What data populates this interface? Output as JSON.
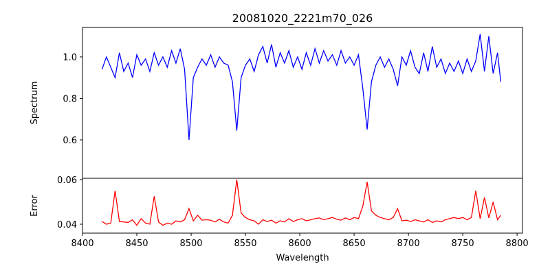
{
  "chart_data": [
    {
      "type": "line",
      "title": "20081020_2221m70_026",
      "xlabel": "",
      "ylabel": "Spectrum",
      "xlim": [
        8400,
        8805
      ],
      "ylim": [
        0.415,
        1.142
      ],
      "yticks": [
        "0.6",
        "0.8",
        "1.0"
      ],
      "ytick_values": [
        0.6,
        0.8,
        1.0
      ],
      "grid": false,
      "color": "#0000ff",
      "x_start": 8418,
      "x_step": 4,
      "values": [
        0.94,
        1.0,
        0.95,
        0.9,
        1.02,
        0.93,
        0.97,
        0.9,
        1.01,
        0.96,
        0.99,
        0.93,
        1.02,
        0.96,
        1.0,
        0.95,
        1.03,
        0.97,
        1.04,
        0.94,
        0.6,
        0.9,
        0.95,
        0.99,
        0.96,
        1.01,
        0.95,
        1.0,
        0.97,
        0.96,
        0.88,
        0.645,
        0.9,
        0.96,
        0.99,
        0.93,
        1.01,
        1.05,
        0.97,
        1.06,
        0.95,
        1.02,
        0.97,
        1.03,
        0.95,
        1.0,
        0.94,
        1.02,
        0.96,
        1.04,
        0.97,
        1.03,
        0.98,
        1.01,
        0.96,
        1.03,
        0.97,
        1.0,
        0.96,
        1.01,
        0.85,
        0.65,
        0.88,
        0.96,
        1.0,
        0.95,
        0.99,
        0.94,
        0.86,
        1.0,
        0.96,
        1.03,
        0.95,
        0.92,
        1.02,
        0.93,
        1.05,
        0.95,
        0.99,
        0.92,
        0.97,
        0.93,
        0.98,
        0.92,
        0.99,
        0.93,
        0.98,
        1.11,
        0.93,
        1.1,
        0.92,
        1.02,
        0.88
      ]
    },
    {
      "type": "line",
      "title": "",
      "xlabel": "Wavelength",
      "ylabel": "Error",
      "xlim": [
        8400,
        8805
      ],
      "ylim": [
        0.036,
        0.0606
      ],
      "xticks": [
        "8400",
        "8450",
        "8500",
        "8550",
        "8600",
        "8650",
        "8700",
        "8750",
        "8800"
      ],
      "xtick_values": [
        8400,
        8450,
        8500,
        8550,
        8600,
        8650,
        8700,
        8750,
        8800
      ],
      "yticks": [
        "0.04",
        "0.06"
      ],
      "ytick_values": [
        0.04,
        0.06
      ],
      "grid": false,
      "color": "#ff0000",
      "x_start": 8418,
      "x_step": 4,
      "values": [
        0.0412,
        0.04,
        0.0405,
        0.055,
        0.0412,
        0.041,
        0.0408,
        0.042,
        0.0395,
        0.0425,
        0.0405,
        0.04,
        0.0525,
        0.041,
        0.0395,
        0.0405,
        0.04,
        0.0415,
        0.041,
        0.042,
        0.047,
        0.0415,
        0.044,
        0.0418,
        0.042,
        0.0418,
        0.041,
        0.0422,
        0.041,
        0.0405,
        0.044,
        0.06,
        0.045,
        0.043,
        0.042,
        0.0415,
        0.04,
        0.042,
        0.0412,
        0.0418,
        0.0405,
        0.0415,
        0.041,
        0.0425,
        0.0412,
        0.042,
        0.0425,
        0.0415,
        0.042,
        0.0425,
        0.0428,
        0.042,
        0.0425,
        0.043,
        0.0422,
        0.0418,
        0.0428,
        0.042,
        0.043,
        0.0425,
        0.048,
        0.059,
        0.046,
        0.044,
        0.043,
        0.0425,
        0.042,
        0.043,
        0.047,
        0.0415,
        0.0418,
        0.0412,
        0.042,
        0.0415,
        0.041,
        0.042,
        0.0408,
        0.0415,
        0.041,
        0.042,
        0.0425,
        0.043,
        0.0425,
        0.043,
        0.042,
        0.043,
        0.055,
        0.0425,
        0.052,
        0.0428,
        0.05,
        0.042,
        0.044
      ]
    }
  ]
}
